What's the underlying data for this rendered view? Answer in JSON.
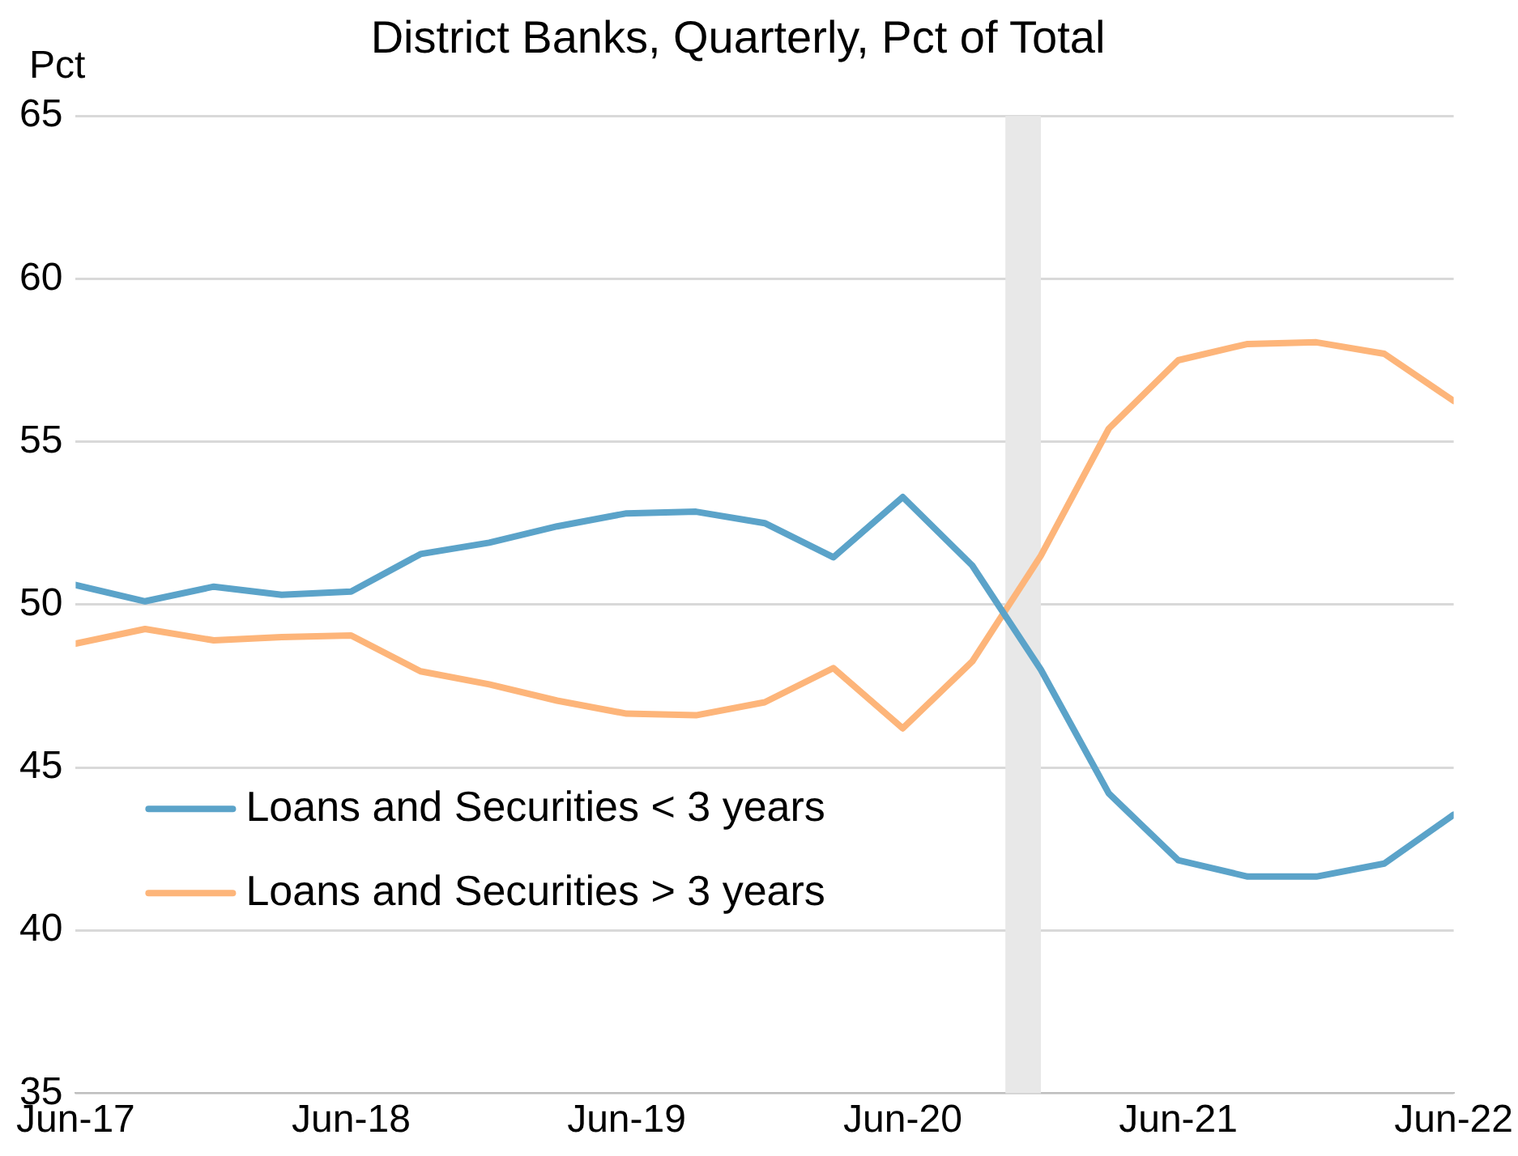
{
  "chart_data": {
    "type": "line",
    "title": "District Banks, Quarterly, Pct of Total",
    "ylabel": "Pct",
    "x": [
      "2017-06",
      "2017-09",
      "2017-12",
      "2018-03",
      "2018-06",
      "2018-09",
      "2018-12",
      "2019-03",
      "2019-06",
      "2019-09",
      "2019-12",
      "2020-03",
      "2020-06",
      "2020-09",
      "2020-12",
      "2021-03",
      "2021-06",
      "2021-09",
      "2021-12",
      "2022-03",
      "2022-06"
    ],
    "series": [
      {
        "name": "Loans and Securities < 3 years",
        "color": "#5ba3c9",
        "values": [
          50.6,
          50.1,
          50.55,
          50.3,
          50.4,
          51.55,
          51.9,
          52.4,
          52.8,
          52.85,
          52.5,
          51.45,
          53.3,
          51.2,
          48.0,
          44.2,
          42.15,
          41.65,
          41.65,
          42.05,
          43.55
        ]
      },
      {
        "name": "Loans and Securities > 3 years",
        "color": "#fdb57a",
        "values": [
          48.8,
          49.25,
          48.9,
          49.0,
          49.05,
          47.95,
          47.55,
          47.05,
          46.65,
          46.6,
          47.0,
          48.05,
          46.2,
          48.25,
          51.5,
          55.4,
          57.5,
          58.0,
          58.05,
          57.7,
          56.25
        ]
      }
    ],
    "xlim": [
      "2017-06",
      "2022-06"
    ],
    "xticks": [
      {
        "value": "2017-06",
        "label": "Jun-17"
      },
      {
        "value": "2018-06",
        "label": "Jun-18"
      },
      {
        "value": "2019-06",
        "label": "Jun-19"
      },
      {
        "value": "2020-06",
        "label": "Jun-20"
      },
      {
        "value": "2021-06",
        "label": "Jun-21"
      },
      {
        "value": "2022-06",
        "label": "Jun-22"
      }
    ],
    "ylim": [
      35,
      65
    ],
    "yticks": [
      35,
      40,
      45,
      50,
      55,
      60,
      65
    ],
    "bands": [
      {
        "axis": "x",
        "from": "2020-10-15",
        "to": "2020-12-01",
        "color": "#e8e8e8"
      }
    ],
    "grid": "y",
    "legend": "left",
    "marker": "none",
    "line_style": "solid"
  }
}
